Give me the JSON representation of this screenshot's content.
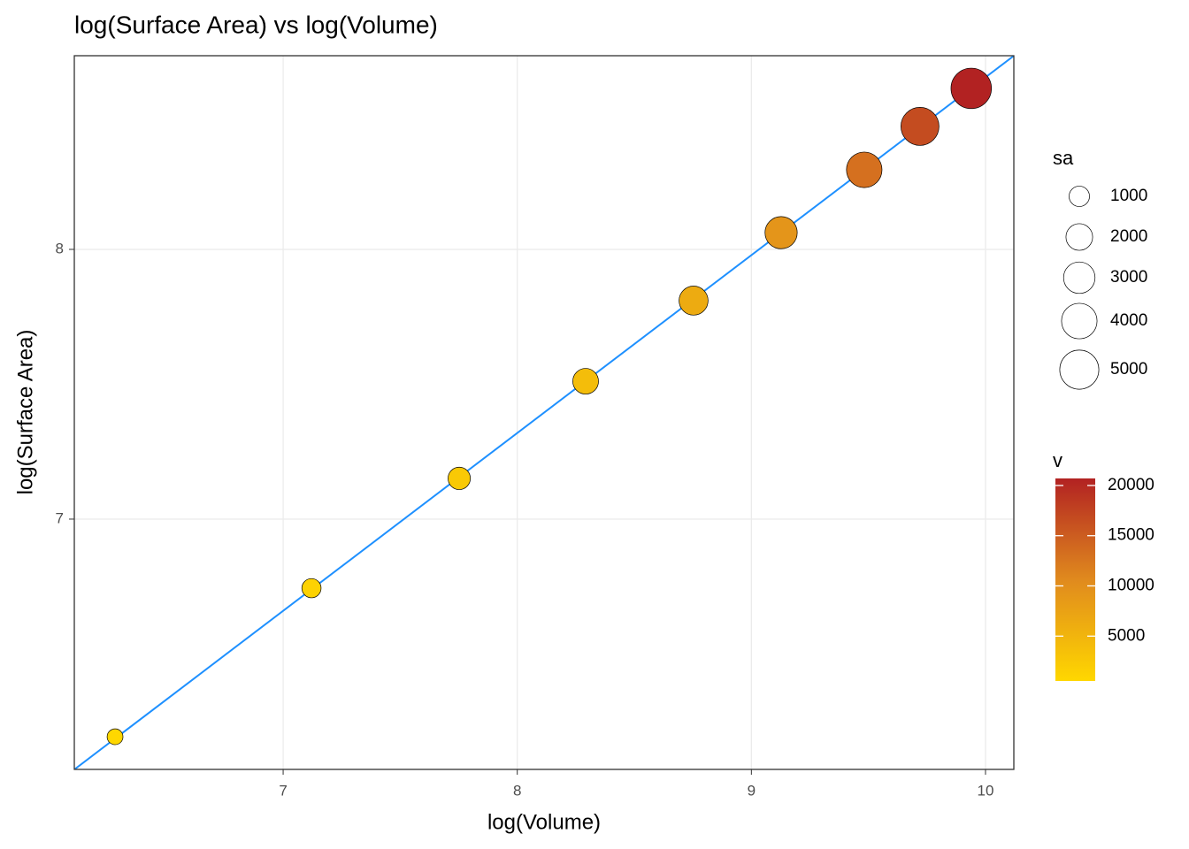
{
  "chart_data": {
    "type": "scatter",
    "title": "log(Surface Area) vs log(Volume)",
    "x_label": "log(Volume)",
    "y_label": "log(Surface Area)",
    "x": [
      6.282,
      7.121,
      7.752,
      8.292,
      8.753,
      9.127,
      9.482,
      9.72,
      9.939
    ],
    "values": [
      6.193,
      6.744,
      7.151,
      7.511,
      7.81,
      8.062,
      8.295,
      8.456,
      8.597
    ],
    "sizes": [
      489,
      849,
      1275,
      1828,
      2465,
      3171,
      4003,
      4701,
      5413
    ],
    "xlim": [
      6.108,
      10.121
    ],
    "xticks": [
      7,
      8,
      9,
      10
    ],
    "ylim": [
      6.072,
      8.718
    ],
    "yticks": [
      7,
      8
    ],
    "grid": true,
    "fit_line": {
      "slope": 0.6594,
      "intercept": 2.044,
      "color": "#1E90FF"
    },
    "size_legend": {
      "title": "sa",
      "values": [
        1000,
        2000,
        3000,
        4000,
        5000
      ]
    },
    "color_legend": {
      "title": "v",
      "lim": [
        535,
        20700
      ],
      "ticks": [
        5000,
        10000,
        15000,
        20000
      ],
      "colors": [
        "#FFD700",
        "#E08A1E",
        "#B22222"
      ]
    }
  }
}
